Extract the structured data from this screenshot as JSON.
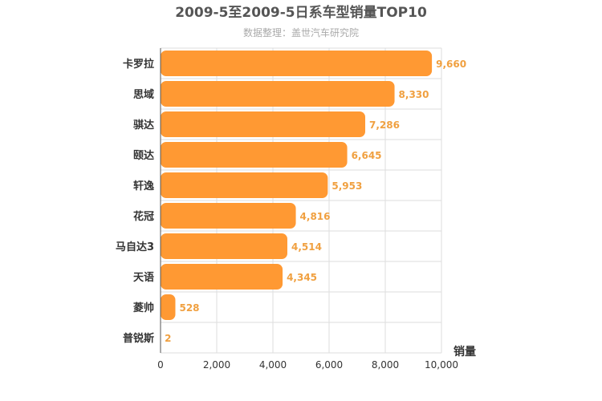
{
  "chart_data": {
    "type": "bar",
    "orientation": "horizontal",
    "title": "2009-5至2009-5日系车型销量TOP10",
    "subtitle": "数据整理：盖世汽车研究院",
    "xlabel": "销量",
    "categories": [
      "卡罗拉",
      "思域",
      "骐达",
      "颐达",
      "轩逸",
      "花冠",
      "马自达3",
      "天语",
      "菱帅",
      "普锐斯"
    ],
    "values": [
      9660,
      8330,
      7286,
      6645,
      5953,
      4816,
      4514,
      4345,
      528,
      2
    ],
    "value_labels": [
      "9,660",
      "8,330",
      "7,286",
      "6,645",
      "5,953",
      "4,816",
      "4,514",
      "4,345",
      "528",
      "2"
    ],
    "xlim": [
      0,
      10000
    ],
    "ticks": [
      "0",
      "2,000",
      "4,000",
      "6,000",
      "8,000",
      "10,000"
    ],
    "grid": true,
    "colors": {
      "bar": "#ff9933",
      "value_label": "#f0a040",
      "grid": "#dddddd"
    }
  }
}
